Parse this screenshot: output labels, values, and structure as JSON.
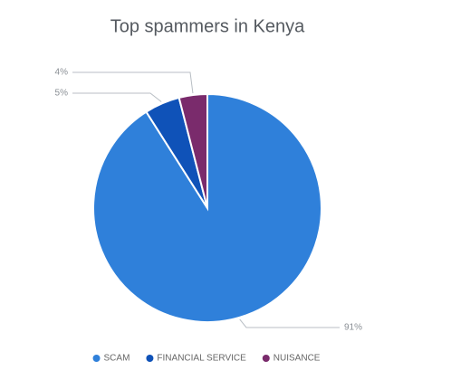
{
  "chart_data": {
    "type": "pie",
    "title": "Top spammers in Kenya",
    "categories": [
      "SCAM",
      "FINANCIAL SERVICE",
      "NUISANCE"
    ],
    "values": [
      91,
      5,
      4
    ],
    "value_labels": [
      "91%",
      "5%",
      "4%"
    ],
    "colors": [
      "#2f80da",
      "#0f52b8",
      "#7a2b6c"
    ],
    "legend": "bottom"
  }
}
